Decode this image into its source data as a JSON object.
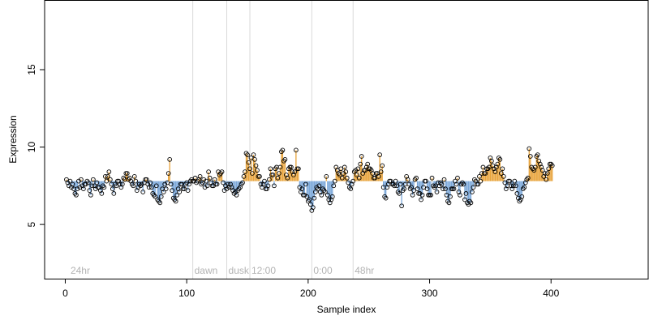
{
  "chart_data": {
    "type": "scatter",
    "title": "",
    "xlabel": "Sample index",
    "ylabel": "Expression",
    "xlim": [
      -17,
      480
    ],
    "ylim": [
      1.5,
      19.5
    ],
    "x_ticks": [
      0,
      100,
      200,
      300,
      400
    ],
    "y_ticks": [
      5,
      10,
      15
    ],
    "x_tick_labels": [
      "0",
      "100",
      "200",
      "300",
      "400"
    ],
    "y_tick_labels": [
      "5",
      "10",
      "15"
    ],
    "baseline": 7.8,
    "colors": {
      "above_baseline": "#e8a33a",
      "below_baseline": "#7aa7d9",
      "marker_line": "#d9d9d9",
      "marker_label": "#b3b3b3",
      "point_edge": "#000000"
    },
    "markers": [
      {
        "x": 3,
        "label": "24hr"
      },
      {
        "x": 105,
        "label": "dawn"
      },
      {
        "x": 133,
        "label": "dusk"
      },
      {
        "x": 152,
        "label": "12:00"
      },
      {
        "x": 203,
        "label": "0:00"
      },
      {
        "x": 237,
        "label": "48hr"
      }
    ],
    "series": [
      {
        "x_start": 1,
        "x_step": 1,
        "values": [
          7.9,
          7.7,
          7.5,
          7.8,
          7.4,
          7.6,
          7.3,
          7.0,
          6.9,
          7.3,
          7.8,
          7.4,
          7.9,
          7.5,
          7.3,
          7.6,
          7.6,
          7.8,
          7.7,
          7.2,
          6.9,
          7.5,
          7.9,
          7.5,
          7.3,
          7.7,
          7.4,
          7.4,
          7.2,
          7.0,
          7.5,
          7.4,
          8.1,
          7.8,
          8.1,
          8.4,
          7.9,
          7.6,
          7.3,
          7.0,
          7.6,
          7.5,
          7.8,
          7.8,
          7.6,
          7.4,
          7.6,
          8.0,
          7.9,
          8.3,
          8.3,
          7.9,
          8.0,
          7.8,
          7.6,
          7.5,
          8.1,
          7.8,
          7.2,
          7.4,
          7.6,
          7.5,
          7.6,
          7.1,
          7.7,
          7.9,
          7.9,
          7.6,
          7.4,
          7.7,
          7.4,
          7.0,
          6.9,
          6.8,
          7.5,
          6.6,
          6.5,
          6.4,
          6.8,
          7.3,
          7.1,
          7.6,
          7.3,
          7.7,
          8.3,
          9.2,
          7.6,
          7.2,
          6.7,
          6.6,
          6.5,
          6.9,
          7.3,
          7.1,
          7.6,
          7.6,
          7.3,
          7.3,
          7.6,
          7.7,
          7.2,
          7.6,
          7.8,
          7.9,
          7.8,
          7.8,
          8.0,
          7.7,
          7.8,
          7.9,
          8.1,
          7.6,
          7.7,
          7.9,
          7.4,
          7.8,
          7.5,
          8.4,
          8.0,
          7.7,
          7.5,
          7.5,
          7.9,
          7.6,
          7.6,
          8.4,
          8.2,
          8.3,
          8.4,
          7.7,
          7.2,
          7.5,
          7.3,
          7.6,
          7.4,
          7.6,
          7.4,
          7.2,
          7.0,
          7.1,
          6.9,
          7.2,
          7.3,
          7.4,
          7.6,
          7.7,
          8.1,
          8.4,
          9.6,
          9.5,
          9.0,
          8.6,
          9.3,
          8.3,
          9.5,
          9.2,
          8.8,
          8.5,
          8.1,
          8.1,
          7.6,
          7.4,
          7.6,
          7.8,
          7.3,
          7.3,
          7.5,
          7.9,
          8.6,
          8.2,
          8.2,
          7.5,
          8.6,
          8.7,
          8.0,
          8.3,
          8.7,
          9.7,
          9.8,
          9.1,
          9.2,
          8.2,
          8.0,
          8.6,
          8.7,
          8.7,
          8.4,
          8.2,
          8.4,
          9.8,
          8.6,
          8.6,
          7.4,
          7.1,
          7.3,
          6.9,
          6.9,
          7.6,
          6.8,
          6.5,
          6.6,
          6.3,
          5.9,
          6.1,
          6.7,
          7.1,
          7.4,
          7.3,
          7.5,
          7.1,
          6.9,
          7.3,
          7.2,
          7.1,
          8.1,
          6.9,
          6.6,
          6.4,
          6.6,
          6.8,
          7.5,
          7.8,
          8.7,
          8.5,
          8.3,
          8.2,
          8.6,
          8.0,
          8.3,
          8.7,
          8.4,
          8.0,
          7.7,
          7.4,
          7.3,
          7.6,
          7.8,
          8.4,
          8.5,
          8.2,
          8.6,
          8.0,
          8.9,
          9.4,
          8.3,
          8.5,
          8.5,
          8.7,
          8.9,
          8.6,
          8.6,
          8.5,
          8.3,
          8.0,
          8.0,
          8.3,
          8.3,
          8.1,
          9.5,
          8.4,
          8.8,
          7.4,
          6.8,
          6.7,
          7.4,
          7.6,
          7.8,
          7.8,
          7.6,
          7.6,
          7.5,
          7.8,
          7.5,
          7.1,
          7.0,
          7.6,
          6.2,
          7.2,
          7.3,
          7.6,
          8.1,
          7.9,
          7.6,
          7.3,
          7.4,
          6.9,
          7.2,
          7.9,
          8.0,
          7.3,
          7.0,
          7.0,
          6.6,
          6.9,
          7.4,
          7.8,
          7.8,
          7.3,
          6.9,
          6.9,
          6.9,
          8.0,
          7.5,
          7.4,
          7.5,
          7.1,
          7.7,
          7.5,
          7.7,
          7.6,
          7.3,
          7.9,
          7.3,
          6.9,
          6.5,
          6.4,
          6.8,
          7.3,
          7.3,
          7.3,
          7.8,
          7.6,
          8.0,
          7.1,
          6.9,
          7.6,
          7.7,
          7.6,
          6.6,
          7.0,
          6.4,
          6.3,
          6.5,
          6.4,
          7.1,
          7.4,
          7.9,
          7.8,
          7.6,
          7.6,
          8.1,
          7.8,
          8.3,
          8.7,
          8.3,
          8.3,
          8.6,
          8.6,
          8.7,
          9.3,
          9.1,
          8.8,
          8.6,
          8.4,
          8.7,
          8.9,
          9.3,
          9.2,
          8.3,
          8.6,
          8.1,
          7.7,
          7.3,
          7.5,
          7.8,
          7.8,
          7.5,
          7.3,
          7.5,
          7.8,
          7.5,
          7.0,
          6.7,
          6.5,
          6.6,
          6.8,
          7.3,
          7.4,
          7.7,
          7.9,
          8.0,
          9.9,
          9.4,
          8.7,
          8.6,
          8.5,
          8.7,
          9.4,
          9.5,
          9.1,
          8.9,
          8.7,
          8.5,
          8.1,
          8.3,
          7.9,
          8.3,
          8.6,
          8.9,
          8.9,
          8.8
        ]
      }
    ]
  }
}
